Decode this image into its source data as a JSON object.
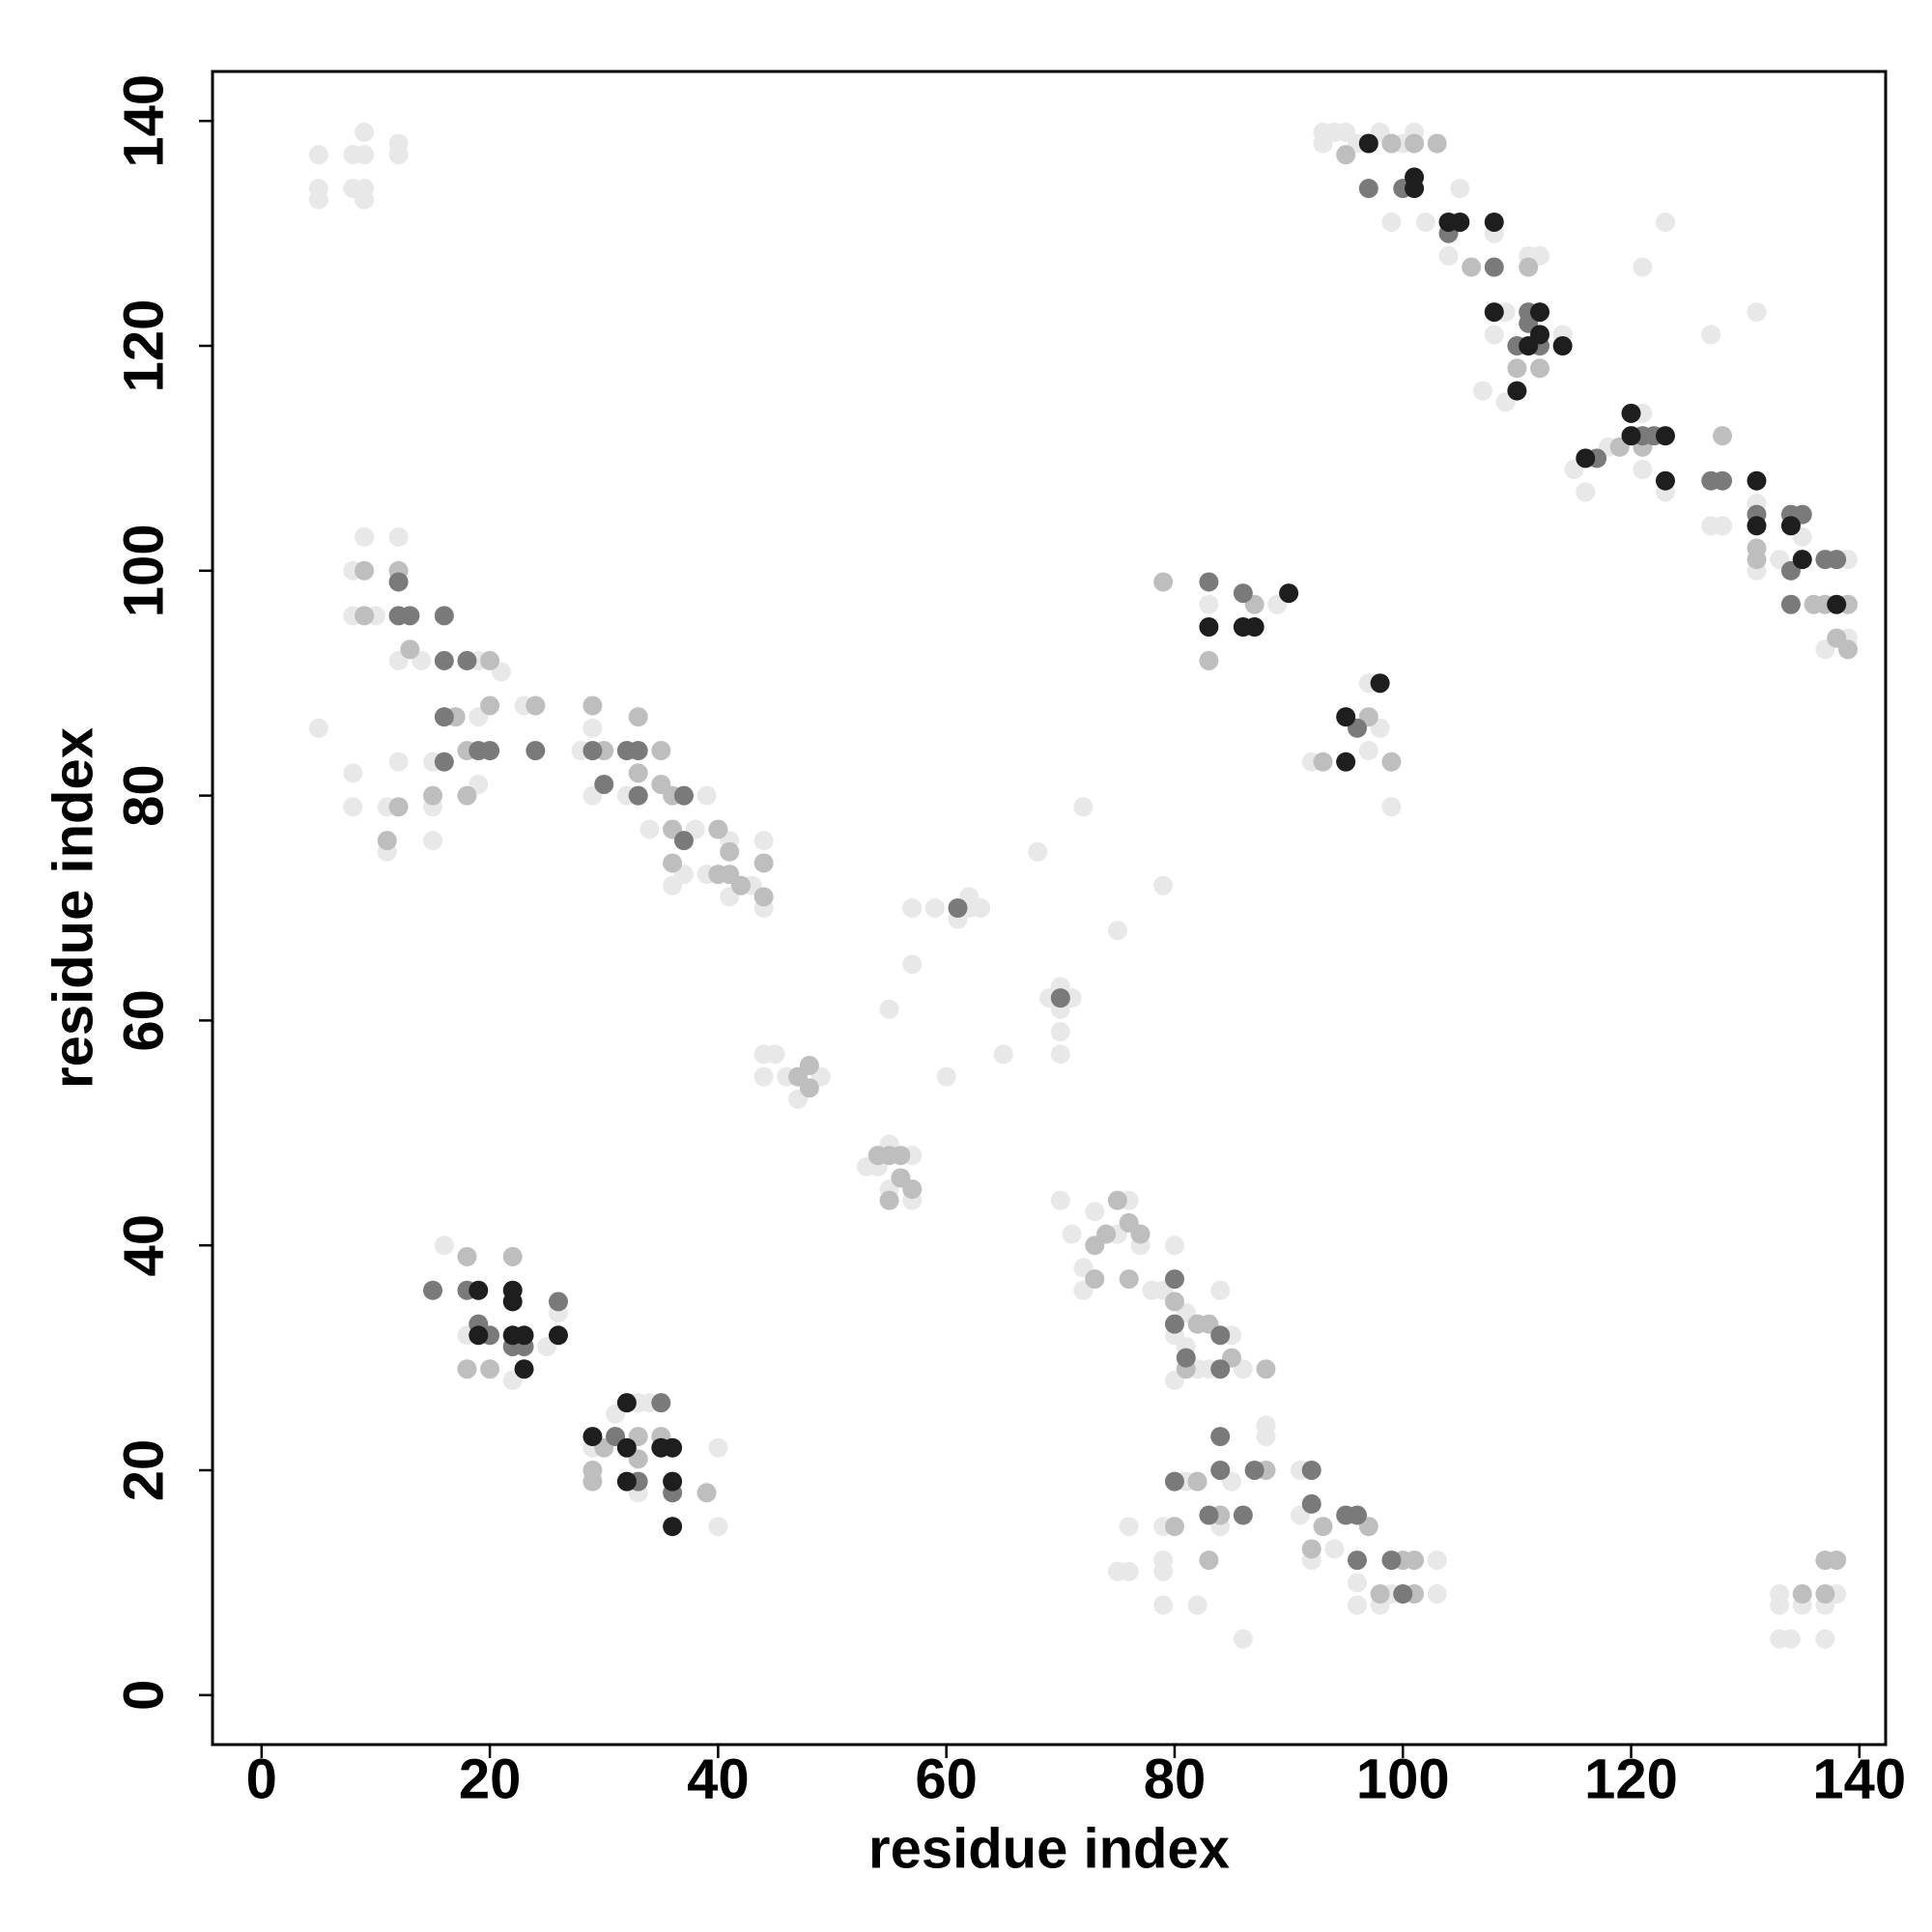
{
  "chart_data": {
    "type": "scatter",
    "xlabel": "residue index",
    "ylabel": "residue index",
    "xlim": [
      -4.3,
      142.3
    ],
    "ylim": [
      -4.4,
      144.4
    ],
    "xticks": [
      0,
      20,
      40,
      60,
      80,
      100,
      120,
      140
    ],
    "yticks": [
      0,
      20,
      40,
      60,
      80,
      100,
      120,
      140
    ],
    "series": [
      {
        "color": "#e8e8e8",
        "x": [
          5,
          5,
          5,
          8,
          9,
          9,
          9,
          9,
          12,
          12,
          8,
          8,
          9,
          12,
          8,
          10,
          12,
          14,
          19,
          19,
          21,
          23,
          24,
          5,
          8,
          8,
          11,
          12,
          11,
          15,
          15,
          15,
          19,
          28,
          29,
          29,
          32,
          34,
          36,
          37,
          39,
          38,
          39,
          41,
          41,
          43,
          44,
          44,
          40,
          40,
          29,
          31,
          33,
          34,
          33,
          26,
          25,
          16,
          18,
          22,
          44,
          45,
          44,
          46,
          47,
          49,
          53,
          55,
          54,
          55,
          57,
          57,
          55,
          57,
          57,
          59,
          62,
          62,
          63,
          61,
          60,
          65,
          68,
          72,
          75,
          79,
          69,
          70,
          70,
          70,
          70,
          71,
          70,
          71,
          72,
          72,
          73,
          75,
          76,
          77,
          78,
          79,
          80,
          80,
          81,
          82,
          83,
          85,
          86,
          84,
          81,
          80,
          76,
          75,
          76,
          79,
          79,
          79,
          79,
          82,
          81,
          84,
          85,
          88,
          88,
          86,
          91,
          91,
          92,
          94,
          96,
          96,
          98,
          99,
          103,
          103,
          133,
          133,
          133,
          134,
          135,
          137,
          137,
          138,
          93,
          93,
          94,
          95,
          96,
          98,
          100,
          101,
          99,
          102,
          104,
          105,
          108,
          109,
          108,
          111,
          112,
          107,
          109,
          114,
          115,
          116,
          118,
          121,
          121,
          121,
          123,
          123,
          127,
          128,
          127,
          131,
          131,
          133,
          131,
          135,
          139,
          139,
          137,
          89,
          83,
          98,
          97,
          97,
          99,
          92
        ],
        "values": [
          137,
          134,
          133,
          137,
          137,
          139,
          134,
          133,
          137,
          138,
          134,
          100,
          103,
          103,
          96,
          96,
          92,
          92,
          87,
          92,
          91,
          88,
          88,
          86,
          82,
          79,
          79,
          83,
          75,
          76,
          79,
          83,
          81,
          84,
          80,
          86,
          80,
          77,
          72,
          73,
          80,
          77,
          73,
          76,
          71,
          72,
          76,
          70,
          22,
          15,
          22,
          25,
          26,
          26,
          18,
          34,
          31,
          40,
          32,
          28,
          55,
          57,
          57,
          55,
          53,
          55,
          47,
          49,
          47,
          45,
          44,
          48,
          61,
          65,
          70,
          70,
          70,
          71,
          70,
          69,
          55,
          57,
          75,
          79,
          68,
          72,
          62,
          63,
          61,
          59,
          57,
          62,
          44,
          41,
          38,
          36,
          43,
          41,
          44,
          40,
          36,
          36,
          40,
          32,
          31,
          29,
          29,
          32,
          29,
          36,
          34,
          28,
          15,
          11,
          11,
          15,
          12,
          11,
          8,
          8,
          19,
          15,
          19,
          24,
          23,
          5,
          20,
          16,
          12,
          13,
          10,
          8,
          8,
          9,
          12,
          9,
          9,
          8,
          5,
          5,
          8,
          8,
          5,
          9,
          138,
          139,
          139,
          139,
          138,
          139,
          138,
          139,
          131,
          131,
          128,
          134,
          130,
          123,
          121,
          128,
          128,
          116,
          115,
          121,
          109,
          107,
          111,
          109,
          114,
          127,
          131,
          107,
          121,
          104,
          104,
          123,
          100,
          101,
          106,
          103,
          94,
          101,
          93,
          97,
          97,
          86,
          90,
          84,
          79,
          83
        ]
      },
      {
        "color": "#bebebe",
        "x": [
          9,
          12,
          13,
          18,
          20,
          29,
          30,
          18,
          15,
          20,
          9,
          33,
          36,
          36,
          40,
          41,
          44,
          41,
          48,
          48,
          55,
          54,
          56,
          73,
          73,
          76,
          77,
          76,
          80,
          82,
          83,
          85,
          88,
          81,
          80,
          82,
          83,
          84,
          88,
          92,
          93,
          97,
          98,
          100,
          101,
          101,
          18,
          22,
          18,
          20,
          29,
          29,
          33,
          33,
          35,
          30,
          39,
          135,
          137,
          137,
          138,
          121,
          119,
          112,
          110,
          106,
          111,
          101,
          103,
          99,
          95,
          128,
          131,
          131,
          136,
          137,
          139,
          139,
          138,
          99,
          97,
          93,
          79,
          83,
          87,
          74,
          75,
          17,
          24,
          47,
          40,
          42,
          44,
          55,
          57,
          56,
          33,
          35,
          36,
          35,
          12,
          11
        ],
        "values": [
          100,
          100,
          93,
          84,
          88,
          88,
          84,
          80,
          80,
          92,
          96,
          82,
          80,
          77,
          77,
          75,
          74,
          73,
          54,
          56,
          48,
          48,
          46,
          40,
          37,
          37,
          41,
          42,
          35,
          33,
          33,
          30,
          29,
          29,
          15,
          19,
          12,
          16,
          20,
          13,
          15,
          15,
          9,
          12,
          12,
          9,
          39,
          39,
          29,
          29,
          19,
          20,
          23,
          21,
          23,
          22,
          18,
          9,
          9,
          12,
          12,
          111,
          111,
          118,
          118,
          127,
          127,
          138,
          138,
          138,
          137,
          112,
          102,
          101,
          97,
          97,
          97,
          93,
          94,
          83,
          87,
          83,
          99,
          92,
          97,
          41,
          44,
          87,
          88,
          55,
          73,
          72,
          71,
          44,
          45,
          48,
          87,
          84,
          74,
          81,
          79,
          76
        ]
      },
      {
        "color": "#7a7a7a",
        "x": [
          15,
          18,
          19,
          20,
          22,
          23,
          26,
          31,
          35,
          33,
          36,
          33,
          37,
          29,
          32,
          33,
          16,
          16,
          19,
          20,
          24,
          12,
          13,
          16,
          16,
          18,
          97,
          100,
          104,
          108,
          111,
          110,
          112,
          111,
          117,
          121,
          122,
          127,
          128,
          131,
          134,
          135,
          134,
          134,
          137,
          138,
          83,
          86,
          96,
          80,
          80,
          81,
          84,
          84,
          84,
          84,
          87,
          86,
          83,
          80,
          92,
          92,
          95,
          96,
          96,
          99,
          100,
          61,
          70,
          30,
          37,
          12
        ],
        "values": [
          36,
          36,
          33,
          32,
          31,
          31,
          35,
          23,
          26,
          19,
          18,
          80,
          80,
          84,
          84,
          84,
          87,
          83,
          84,
          84,
          84,
          96,
          96,
          96,
          92,
          92,
          134,
          134,
          130,
          127,
          123,
          120,
          120,
          122,
          110,
          112,
          112,
          108,
          108,
          105,
          105,
          105,
          100,
          97,
          101,
          101,
          99,
          98,
          86,
          37,
          33,
          30,
          32,
          29,
          23,
          20,
          20,
          16,
          16,
          19,
          20,
          17,
          16,
          16,
          12,
          12,
          9,
          70,
          62,
          81,
          76,
          99
        ]
      },
      {
        "color": "#1e1e1e",
        "x": [
          97,
          101,
          101,
          104,
          105,
          108,
          108,
          112,
          111,
          112,
          114,
          110,
          116,
          120,
          120,
          123,
          123,
          131,
          131,
          134,
          135,
          138,
          87,
          90,
          95,
          98,
          95,
          19,
          22,
          19,
          22,
          23,
          26,
          23,
          22,
          32,
          29,
          32,
          35,
          36,
          32,
          36,
          36,
          83,
          86
        ],
        "values": [
          138,
          135,
          134,
          131,
          131,
          131,
          123,
          123,
          120,
          121,
          120,
          116,
          110,
          114,
          112,
          112,
          108,
          108,
          104,
          104,
          101,
          97,
          95,
          98,
          87,
          90,
          83,
          36,
          36,
          32,
          32,
          32,
          32,
          29,
          35,
          26,
          23,
          22,
          22,
          19,
          19,
          22,
          15,
          95,
          95
        ]
      }
    ]
  }
}
